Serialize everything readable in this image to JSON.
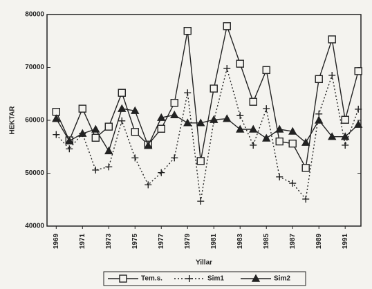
{
  "chart_data": {
    "type": "line",
    "x_label": "Yillar",
    "y_label": "HEKTAR",
    "x": [
      1969,
      1970,
      1971,
      1972,
      1973,
      1974,
      1975,
      1976,
      1977,
      1978,
      1979,
      1980,
      1981,
      1982,
      1983,
      1984,
      1985,
      1986,
      1987,
      1988,
      1989,
      1990,
      1991,
      1992
    ],
    "xlim": [
      1968.3,
      1992.2
    ],
    "xticks": [
      1969,
      1971,
      1973,
      1975,
      1977,
      1979,
      1981,
      1983,
      1985,
      1987,
      1989,
      1991
    ],
    "ylim": [
      40000,
      80000
    ],
    "yticks": [
      40000,
      50000,
      60000,
      70000,
      80000
    ],
    "legend": "bottom",
    "series": [
      {
        "name": "Tem.s.",
        "color": "#222222",
        "dash": "solid",
        "marker": "square",
        "values": [
          61600,
          56200,
          62200,
          56700,
          58800,
          65200,
          57800,
          55400,
          58400,
          63300,
          76900,
          52300,
          66000,
          77800,
          70700,
          63500,
          69500,
          56000,
          55600,
          51000,
          67800,
          75300,
          60100,
          69300
        ]
      },
      {
        "name": "Sim1",
        "color": "#222222",
        "dash": "dotted",
        "marker": "plus",
        "values": [
          57300,
          54600,
          57500,
          50600,
          51200,
          59900,
          52900,
          47800,
          50100,
          52900,
          65200,
          44700,
          59900,
          69800,
          60900,
          55300,
          62200,
          49300,
          48100,
          45100,
          61200,
          68500,
          55300,
          62100
        ]
      },
      {
        "name": "Sim2",
        "color": "#222222",
        "dash": "solid",
        "marker": "triangle",
        "values": [
          60300,
          56100,
          57500,
          58300,
          54200,
          62200,
          61800,
          55200,
          60500,
          61000,
          59500,
          59500,
          60100,
          60300,
          58300,
          58300,
          56600,
          58300,
          57900,
          55800,
          60000,
          56900,
          56900,
          59200
        ]
      }
    ]
  }
}
